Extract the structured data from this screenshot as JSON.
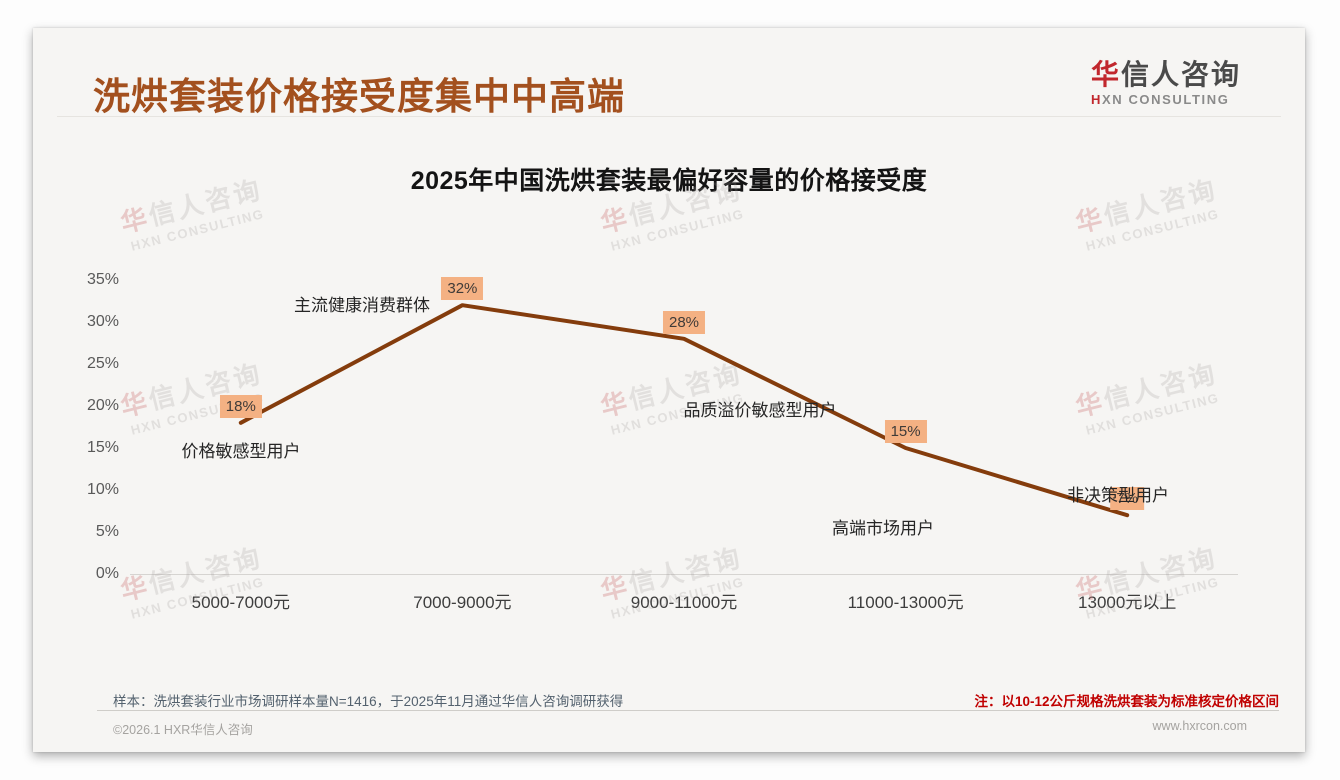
{
  "page": {
    "title": "洗烘套装价格接受度集中中高端",
    "logo": {
      "zh_accent": "华",
      "zh_rest": "信人咨询",
      "en_accent": "H",
      "en_rest": "XN CONSULTING"
    },
    "notes": {
      "sample": "样本：洗烘套装行业市场调研样本量N=1416，于2025年11月通过华信人咨询调研获得",
      "right": "注：以10-12公斤规格洗烘套装为标准核定价格区间"
    },
    "footer": {
      "copyright": "©2026.1 HXR华信人咨询",
      "website": "www.hxrcon.com"
    }
  },
  "watermark": {
    "zh_accent": "华",
    "zh_rest": "信人咨询",
    "en": "HXN CONSULTING"
  },
  "chart_data": {
    "type": "line",
    "title": "2025年中国洗烘套装最偏好容量的价格接受度",
    "categories": [
      "5000-7000元",
      "7000-9000元",
      "9000-11000元",
      "11000-13000元",
      "13000元以上"
    ],
    "values": [
      18,
      32,
      28,
      15,
      7
    ],
    "data_labels": [
      "18%",
      "32%",
      "28%",
      "15%",
      "7%"
    ],
    "annotations": [
      "价格敏感型用户",
      "主流健康消费群体",
      "品质溢价敏感型用户",
      "高端市场用户",
      "非决策型用户"
    ],
    "xlabel": "",
    "ylabel": "",
    "ylim": [
      0,
      35
    ],
    "ytick_step": 5,
    "ytick_labels": [
      "0%",
      "5%",
      "10%",
      "15%",
      "20%",
      "25%",
      "30%",
      "35%"
    ],
    "grid": false,
    "legend": "none",
    "line_color": "#843C0C",
    "label_bg": "#F4B183",
    "title_color": "#141414",
    "accent_title_color": "#a3501e",
    "note_color": "#c00000"
  }
}
